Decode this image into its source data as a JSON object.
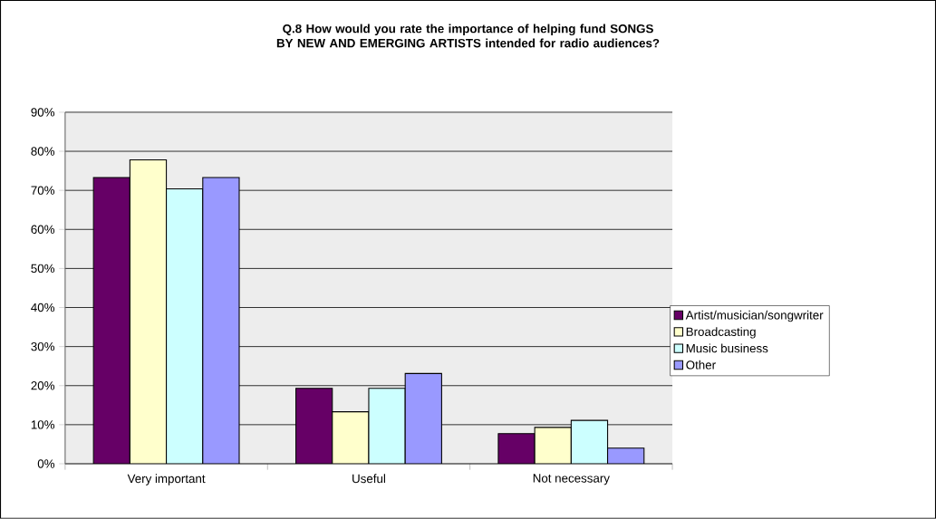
{
  "chart_data": {
    "type": "bar",
    "title": "Q.8 How would you rate the importance of helping fund SONGS BY NEW AND EMERGING ARTISTS intended for radio audiences?",
    "categories": [
      "Very important",
      "Useful",
      "Not necessary"
    ],
    "series": [
      {
        "name": "Artist/musician/songwriter",
        "color": "#660066",
        "values": [
          73.3,
          19.3,
          7.7
        ]
      },
      {
        "name": "Broadcasting",
        "color": "#ffffcc",
        "values": [
          77.8,
          13.3,
          9.3
        ]
      },
      {
        "name": "Music business",
        "color": "#ccffff",
        "values": [
          70.4,
          19.3,
          11.1
        ]
      },
      {
        "name": "Other",
        "color": "#9999ff",
        "values": [
          73.3,
          23.1,
          4.0
        ]
      }
    ],
    "ylim": [
      0,
      90
    ],
    "yticks": [
      {
        "value": 0,
        "label": "0%"
      },
      {
        "value": 10,
        "label": "10%"
      },
      {
        "value": 20,
        "label": "20%"
      },
      {
        "value": 30,
        "label": "30%"
      },
      {
        "value": 40,
        "label": "40%"
      },
      {
        "value": 50,
        "label": "50%"
      },
      {
        "value": 60,
        "label": "60%"
      },
      {
        "value": 70,
        "label": "70%"
      },
      {
        "value": 80,
        "label": "80%"
      },
      {
        "value": 90,
        "label": "90%"
      }
    ],
    "grid": "y",
    "legend": "right"
  }
}
